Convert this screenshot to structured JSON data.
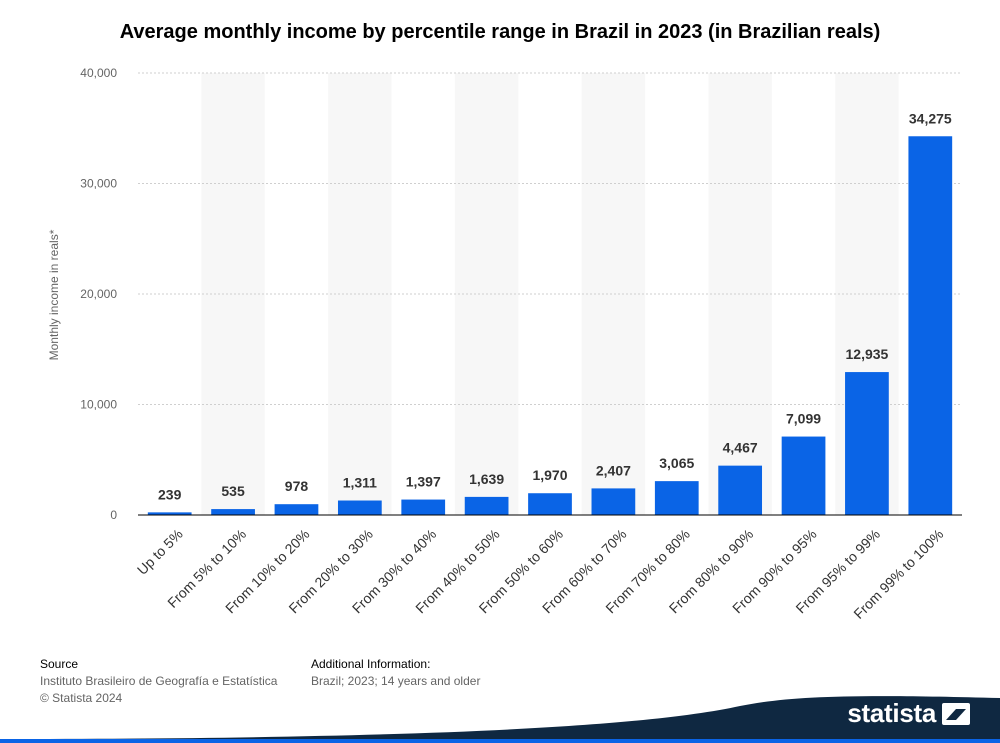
{
  "chart_data": {
    "type": "bar",
    "title": "Average monthly income by percentile range in Brazil in 2023 (in Brazilian reals)",
    "xlabel": "",
    "ylabel": "Monthly income in reals*",
    "ylim": [
      0,
      40000
    ],
    "yticks": [
      0,
      10000,
      20000,
      30000,
      40000
    ],
    "ytick_labels": [
      "0",
      "10,000",
      "20,000",
      "30,000",
      "40,000"
    ],
    "grid": true,
    "categories": [
      "Up to 5%",
      "From 5% to 10%",
      "From 10% to 20%",
      "From 20% to 30%",
      "From 30% to 40%",
      "From 40% to 50%",
      "From 50% to 60%",
      "From 60% to 70%",
      "From 70% to 80%",
      "From 80% to 90%",
      "From 90% to 95%",
      "From 95% to 99%",
      "From 99% to 100%"
    ],
    "values": [
      239,
      535,
      978,
      1311,
      1397,
      1639,
      1970,
      2407,
      3065,
      4467,
      7099,
      12935,
      34275
    ],
    "value_labels": [
      "239",
      "535",
      "978",
      "1,311",
      "1,397",
      "1,639",
      "1,970",
      "2,407",
      "3,065",
      "4,467",
      "7,099",
      "12,935",
      "34,275"
    ],
    "bar_color": "#0a64e6"
  },
  "footer": {
    "source_heading": "Source",
    "source_text": "Instituto Brasileiro de Geografía e Estatística",
    "copyright": "© Statista 2024",
    "additional_heading": "Additional Information:",
    "additional_text": "Brazil; 2023; 14 years and older"
  },
  "brand": {
    "name": "statista",
    "color": "#0f2841"
  }
}
